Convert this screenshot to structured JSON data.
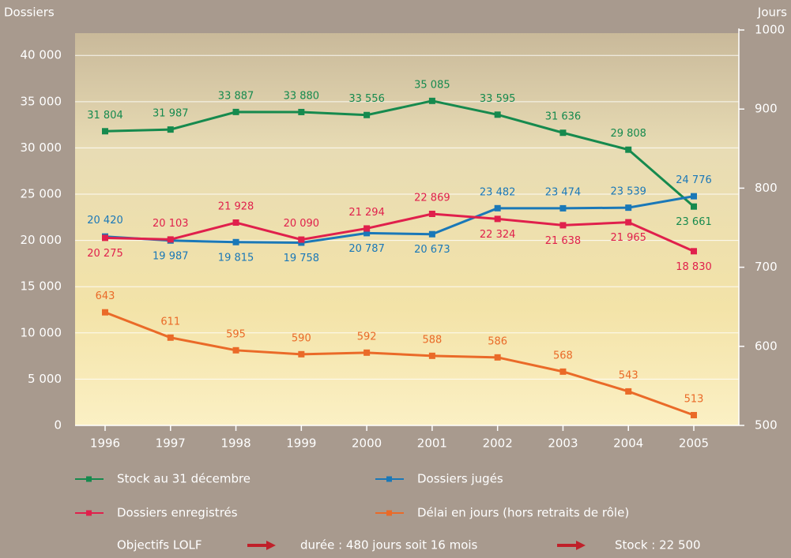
{
  "chart_data": {
    "type": "line",
    "y_label": "Dossiers",
    "y2_label": "Jours",
    "categories": [
      "1996",
      "1997",
      "1998",
      "1999",
      "2000",
      "2001",
      "2002",
      "2003",
      "2004",
      "2005"
    ],
    "series": [
      {
        "name": "Stock au 31 décembre",
        "color": "#168a4e",
        "values": [
          31804,
          31987,
          33887,
          33880,
          33556,
          35085,
          33595,
          31636,
          29808,
          23661
        ],
        "value_labels": [
          "31 804",
          "31 987",
          "33 887",
          "33 880",
          "33 556",
          "35 085",
          "33 595",
          "31 636",
          "29 808",
          "23 661"
        ]
      },
      {
        "name": "Dossiers jugés",
        "color": "#1a78b8",
        "values": [
          20420,
          19987,
          19815,
          19758,
          20787,
          20673,
          23482,
          23474,
          23539,
          24776
        ],
        "value_labels": [
          "20 420",
          "19 987",
          "19 815",
          "19 758",
          "20 787",
          "20 673",
          "23 482",
          "23 474",
          "23 539",
          "24 776"
        ]
      },
      {
        "name": "Dossiers enregistrés",
        "color": "#e0204c",
        "values": [
          20275,
          20103,
          21928,
          20090,
          21294,
          22869,
          22324,
          21638,
          21965,
          18830
        ],
        "value_labels": [
          "20 275",
          "20 103",
          "21 928",
          "20 090",
          "21 294",
          "22 869",
          "22 324",
          "21 638",
          "21 965",
          "18 830"
        ]
      },
      {
        "name": "Délai en jours (hors retraits de rôle)",
        "color": "#ea6a28",
        "axis": "y2",
        "values": [
          643,
          611,
          595,
          590,
          592,
          588,
          586,
          568,
          543,
          513
        ]
      }
    ],
    "ylim": [
      0,
      42750
    ],
    "yticks": [
      0,
      {
        "value": 5000,
        "label": "5 000"
      },
      {
        "value": 10000,
        "label": "10 000"
      },
      {
        "value": 15000,
        "label": "15 000"
      },
      {
        "value": 20000,
        "label": "20 000"
      },
      {
        "value": 25000,
        "label": "25 000"
      },
      {
        "value": 30000,
        "label": "30 000"
      },
      {
        "value": 35000,
        "label": "35 000"
      },
      {
        "value": 40000,
        "label": "40 000"
      }
    ],
    "y2lim": [
      500,
      1000
    ],
    "y2ticks": [
      500,
      600,
      700,
      800,
      900,
      1000
    ],
    "grid": true,
    "annotations": [
      "Objectifs LOLF",
      "durée : 480 jours soit 16 mois",
      "Stock : 22 500"
    ],
    "annotation_color": "#c0202a"
  }
}
